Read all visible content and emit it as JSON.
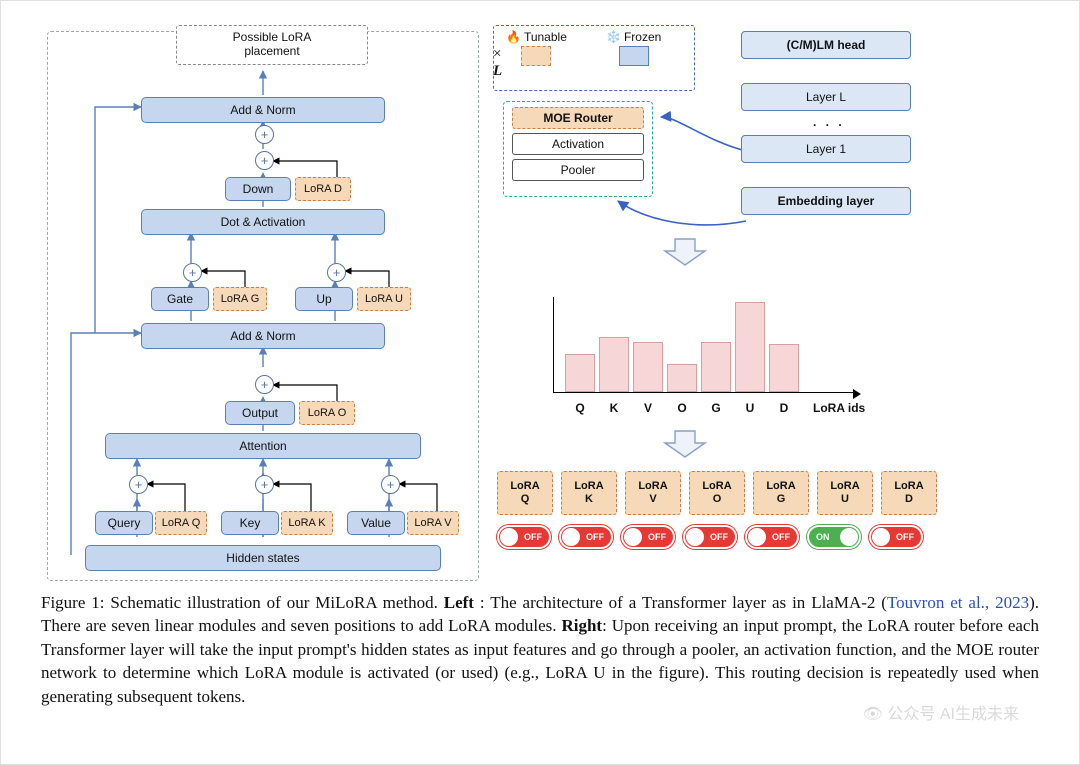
{
  "figure": {
    "possible_lora_label": "Possible LoRA\nplacement",
    "times_L": "L",
    "left_nodes": {
      "add_norm_top": "Add & Norm",
      "down": "Down",
      "lora_d": "LoRA D",
      "dot_activation": "Dot & Activation",
      "gate": "Gate",
      "lora_g": "LoRA G",
      "up": "Up",
      "lora_u": "LoRA U",
      "add_norm_mid": "Add & Norm",
      "output": "Output",
      "lora_o": "LoRA O",
      "attention": "Attention",
      "query": "Query",
      "lora_q": "LoRA Q",
      "key": "Key",
      "lora_k": "LoRA K",
      "value": "Value",
      "lora_v": "LoRA V",
      "hidden_states": "Hidden states"
    },
    "legend": {
      "tunable": "Tunable",
      "frozen": "Frozen",
      "tunable_color": "#f5d9b8",
      "tunable_border": "#c87f4a",
      "frozen_color": "#c6d6ef",
      "frozen_border": "#5b7fb8"
    },
    "router": {
      "moe": "MOE Router",
      "activation": "Activation",
      "pooler": "Pooler"
    },
    "stack": {
      "head": "(C/M)LM head",
      "layer_L": "Layer L",
      "layer_1": "Layer 1",
      "embedding": "Embedding layer"
    },
    "histogram": {
      "ids": [
        "Q",
        "K",
        "V",
        "O",
        "G",
        "U",
        "D"
      ],
      "heights": [
        38,
        55,
        50,
        28,
        50,
        90,
        48
      ],
      "bar_color": "#f6d6d6",
      "bar_border": "#d6a0a0",
      "label": "LoRA ids"
    },
    "lora_cards": [
      "Q",
      "K",
      "V",
      "O",
      "G",
      "U",
      "D"
    ],
    "card_prefix": "LoRA",
    "switches": [
      "OFF",
      "OFF",
      "OFF",
      "OFF",
      "OFF",
      "ON",
      "OFF"
    ],
    "switch_on_color": "#4caf50",
    "switch_off_color": "#e53935"
  },
  "caption": {
    "prefix": "Figure 1:  Schematic illustration of our MiLoRA method. ",
    "left_label": "Left",
    "left_text_a": ":  The architecture of a Transformer layer as in LlaMA-2 (",
    "citation": "Touvron et al., 2023",
    "left_text_b": "). There are seven linear modules and seven positions to add LoRA modules. ",
    "right_label": "Right",
    "right_text": ": Upon receiving an input prompt, the LoRA router before each Transformer layer will take the input prompt's hidden states as input features and go through a pooler, an activation function, and the MOE router network to determine which LoRA module is activated (or used) (e.g., LoRA U in the figure). This routing decision is repeatedly used when generating subsequent tokens."
  },
  "watermark": "公众号   AI生成未来"
}
